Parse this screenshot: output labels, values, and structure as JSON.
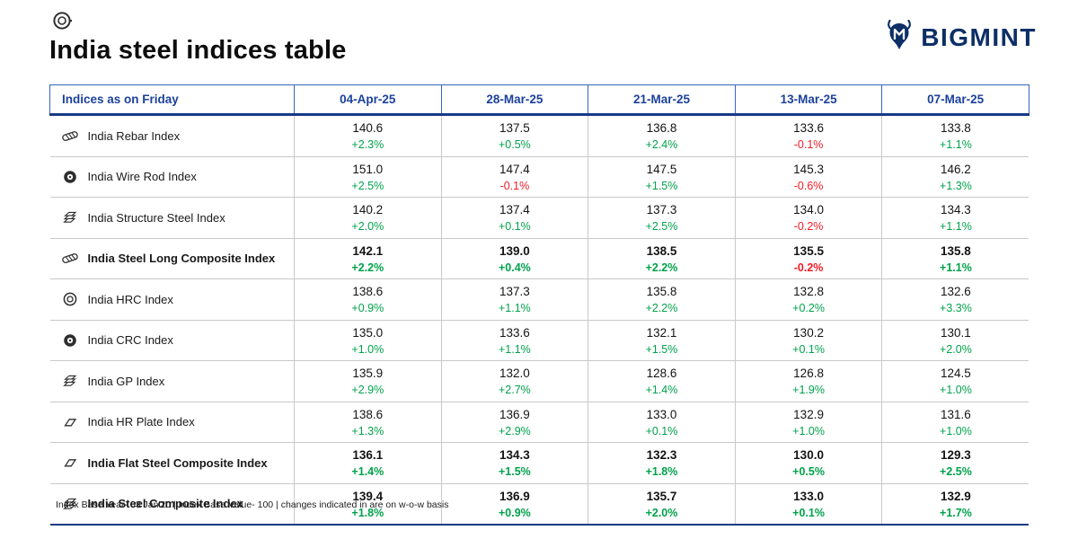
{
  "page": {
    "title": "India steel indices table",
    "footnote": "Index Base Year- 03 Jan'20 | Index Base Value- 100 | changes indicated in are on w-o-w basis"
  },
  "brand": {
    "name": "BIGMINT"
  },
  "colors": {
    "navy": "#0e2f66",
    "header_blue": "#1c419c",
    "header_border_blue": "#3465bd",
    "positive_green": "#00a24b",
    "negative_red": "#ee1c25",
    "row_divider_gray": "#c9c9c9"
  },
  "table": {
    "corner_label": "Indices as on Friday",
    "dates": [
      "04-Apr-25",
      "28-Mar-25",
      "21-Mar-25",
      "13-Mar-25",
      "07-Mar-25"
    ],
    "rows": [
      {
        "name": "India Rebar Index",
        "icon": "rebar-icon",
        "bold": false,
        "values": [
          "140.6",
          "137.5",
          "136.8",
          "133.6",
          "133.8"
        ],
        "changes": [
          "+2.3%",
          "+0.5%",
          "+2.4%",
          "-0.1%",
          "+1.1%"
        ]
      },
      {
        "name": "India Wire Rod Index",
        "icon": "wire-rod-icon",
        "bold": false,
        "values": [
          "151.0",
          "147.4",
          "147.5",
          "145.3",
          "146.2"
        ],
        "changes": [
          "+2.5%",
          "-0.1%",
          "+1.5%",
          "-0.6%",
          "+1.3%"
        ]
      },
      {
        "name": "India Structure Steel Index",
        "icon": "structure-steel-icon",
        "bold": false,
        "values": [
          "140.2",
          "137.4",
          "137.3",
          "134.0",
          "134.3"
        ],
        "changes": [
          "+2.0%",
          "+0.1%",
          "+2.5%",
          "-0.2%",
          "+1.1%"
        ]
      },
      {
        "name": "India Steel Long Composite Index",
        "icon": "steel-long-composite-icon",
        "bold": true,
        "values": [
          "142.1",
          "139.0",
          "138.5",
          "135.5",
          "135.8"
        ],
        "changes": [
          "+2.2%",
          "+0.4%",
          "+2.2%",
          "-0.2%",
          "+1.1%"
        ]
      },
      {
        "name": "India HRC Index",
        "icon": "hrc-icon",
        "bold": false,
        "values": [
          "138.6",
          "137.3",
          "135.8",
          "132.8",
          "132.6"
        ],
        "changes": [
          "+0.9%",
          "+1.1%",
          "+2.2%",
          "+0.2%",
          "+3.3%"
        ]
      },
      {
        "name": "India CRC Index",
        "icon": "crc-icon",
        "bold": false,
        "values": [
          "135.0",
          "133.6",
          "132.1",
          "130.2",
          "130.1"
        ],
        "changes": [
          "+1.0%",
          "+1.1%",
          "+1.5%",
          "+0.1%",
          "+2.0%"
        ]
      },
      {
        "name": "India GP Index",
        "icon": "gp-icon",
        "bold": false,
        "values": [
          "135.9",
          "132.0",
          "128.6",
          "126.8",
          "124.5"
        ],
        "changes": [
          "+2.9%",
          "+2.7%",
          "+1.4%",
          "+1.9%",
          "+1.0%"
        ]
      },
      {
        "name": "India HR Plate Index",
        "icon": "hr-plate-icon",
        "bold": false,
        "values": [
          "138.6",
          "136.9",
          "133.0",
          "132.9",
          "131.6"
        ],
        "changes": [
          "+1.3%",
          "+2.9%",
          "+0.1%",
          "+1.0%",
          "+1.0%"
        ]
      },
      {
        "name": "India Flat Steel Composite Index",
        "icon": "flat-steel-composite-icon",
        "bold": true,
        "values": [
          "136.1",
          "134.3",
          "132.3",
          "130.0",
          "129.3"
        ],
        "changes": [
          "+1.4%",
          "+1.5%",
          "+1.8%",
          "+0.5%",
          "+2.5%"
        ]
      },
      {
        "name": "India Steel Composite Index",
        "icon": "steel-composite-icon",
        "bold": true,
        "values": [
          "139.4",
          "136.9",
          "135.7",
          "133.0",
          "132.9"
        ],
        "changes": [
          "+1.8%",
          "+0.9%",
          "+2.0%",
          "+0.1%",
          "+1.7%"
        ]
      }
    ]
  },
  "chart_data": {
    "type": "table",
    "title": "India steel indices table",
    "columns": [
      "Indices as on Friday",
      "04-Apr-25",
      "28-Mar-25",
      "21-Mar-25",
      "13-Mar-25",
      "07-Mar-25"
    ],
    "series": [
      {
        "name": "India Rebar Index",
        "values": [
          140.6,
          137.5,
          136.8,
          133.6,
          133.8
        ],
        "wow_change_pct": [
          2.3,
          0.5,
          2.4,
          -0.1,
          1.1
        ]
      },
      {
        "name": "India Wire Rod Index",
        "values": [
          151.0,
          147.4,
          147.5,
          145.3,
          146.2
        ],
        "wow_change_pct": [
          2.5,
          -0.1,
          1.5,
          -0.6,
          1.3
        ]
      },
      {
        "name": "India Structure Steel Index",
        "values": [
          140.2,
          137.4,
          137.3,
          134.0,
          134.3
        ],
        "wow_change_pct": [
          2.0,
          0.1,
          2.5,
          -0.2,
          1.1
        ]
      },
      {
        "name": "India Steel Long Composite Index",
        "values": [
          142.1,
          139.0,
          138.5,
          135.5,
          135.8
        ],
        "wow_change_pct": [
          2.2,
          0.4,
          2.2,
          -0.2,
          1.1
        ]
      },
      {
        "name": "India HRC Index",
        "values": [
          138.6,
          137.3,
          135.8,
          132.8,
          132.6
        ],
        "wow_change_pct": [
          0.9,
          1.1,
          2.2,
          0.2,
          3.3
        ]
      },
      {
        "name": "India CRC Index",
        "values": [
          135.0,
          133.6,
          132.1,
          130.2,
          130.1
        ],
        "wow_change_pct": [
          1.0,
          1.1,
          1.5,
          0.1,
          2.0
        ]
      },
      {
        "name": "India GP Index",
        "values": [
          135.9,
          132.0,
          128.6,
          126.8,
          124.5
        ],
        "wow_change_pct": [
          2.9,
          2.7,
          1.4,
          1.9,
          1.0
        ]
      },
      {
        "name": "India HR Plate Index",
        "values": [
          138.6,
          136.9,
          133.0,
          132.9,
          131.6
        ],
        "wow_change_pct": [
          1.3,
          2.9,
          0.1,
          1.0,
          1.0
        ]
      },
      {
        "name": "India Flat Steel Composite Index",
        "values": [
          136.1,
          134.3,
          132.3,
          130.0,
          129.3
        ],
        "wow_change_pct": [
          1.4,
          1.5,
          1.8,
          0.5,
          2.5
        ]
      },
      {
        "name": "India Steel Composite Index",
        "values": [
          139.4,
          136.9,
          135.7,
          133.0,
          132.9
        ],
        "wow_change_pct": [
          1.8,
          0.9,
          2.0,
          0.1,
          1.7
        ]
      }
    ],
    "note": "Index Base Year- 03 Jan'20 | Index Base Value- 100 | changes indicated in are on w-o-w basis"
  }
}
